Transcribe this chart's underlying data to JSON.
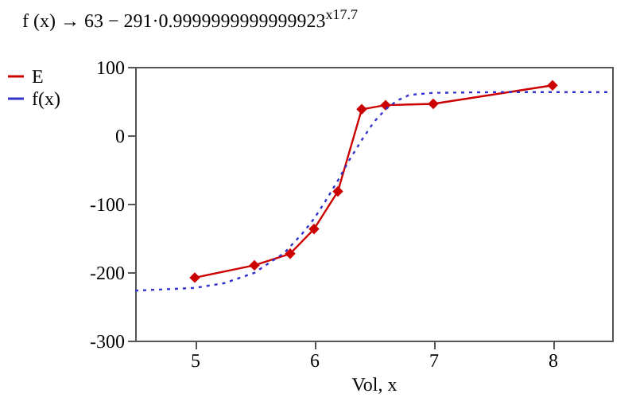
{
  "chart_data": {
    "type": "line",
    "title": "f (x) → 63 − 291·0.9999999999999923$^{x}$$^{17.7}$",
    "xlabel": "Vol, x",
    "xlim": [
      4.5,
      8.5
    ],
    "xticks": [
      5,
      6,
      7,
      8
    ],
    "ylim": [
      -300,
      100
    ],
    "yticks": [
      -300,
      -200,
      -100,
      0,
      100
    ],
    "grid": false,
    "legend": "left",
    "series": [
      {
        "name": "E",
        "color": "#cc0000",
        "marker": "diamond",
        "line_style": "solid",
        "x": [
          5,
          5.5,
          5.8,
          6,
          6.2,
          6.4,
          6.6,
          7,
          8
        ],
        "values": [
          -208,
          -190,
          -173,
          -137,
          -82,
          38,
          44,
          46,
          73
        ]
      },
      {
        "name": "f(x)",
        "color": "#3333cc",
        "marker": "none",
        "line_style": "dotted",
        "x": [
          4.5,
          5,
          5.25,
          5.5,
          5.75,
          5.9,
          6,
          6.1,
          6.2,
          6.3,
          6.4,
          6.5,
          6.6,
          6.7,
          6.8,
          7,
          7.5,
          8,
          8.5
        ],
        "values": [
          -227,
          -223,
          -216,
          -201,
          -172,
          -144,
          -122,
          -95,
          -66,
          -35,
          -7,
          19,
          38,
          51,
          59,
          62,
          63,
          63,
          63
        ]
      }
    ]
  }
}
